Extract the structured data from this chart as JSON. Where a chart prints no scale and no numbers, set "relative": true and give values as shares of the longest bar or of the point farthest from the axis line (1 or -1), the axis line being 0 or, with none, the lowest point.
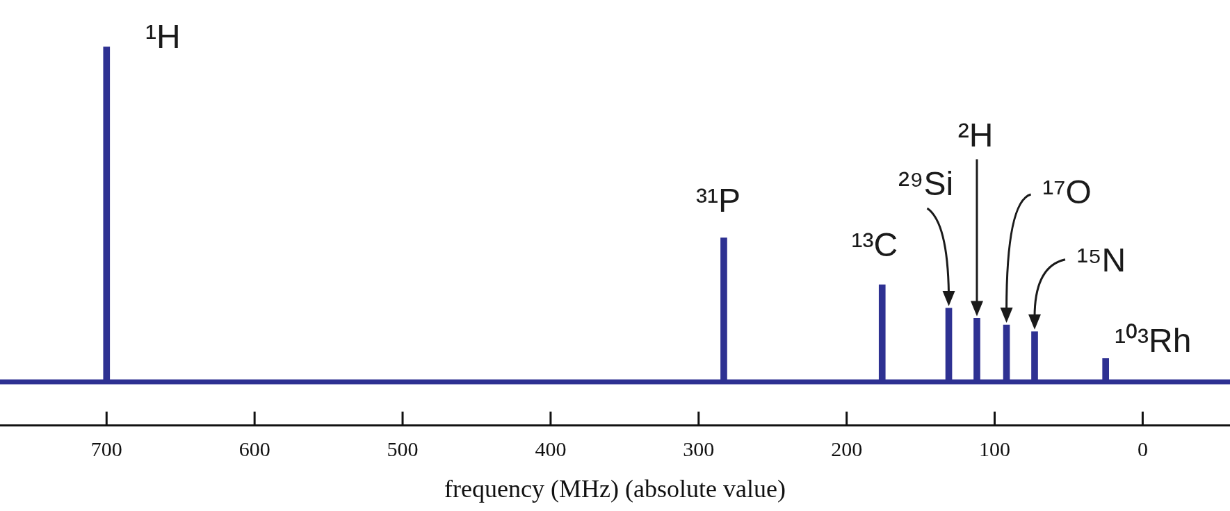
{
  "chart_data": {
    "type": "bar",
    "relative": true,
    "x": [
      700,
      283,
      176,
      131,
      112,
      92,
      73,
      25
    ],
    "values": [
      1,
      0.43,
      0.29,
      0.22,
      0.19,
      0.17,
      0.15,
      0.07
    ],
    "color": "#2e3192",
    "xlim": [
      772,
      -59
    ],
    "xticks": [
      700,
      600,
      500,
      400,
      300,
      200,
      100,
      0
    ],
    "xlabel": "frequency (MHz) (absolute value)",
    "annotations": [
      "¹H",
      "³¹P",
      "¹³C",
      "²⁹Si",
      "²H",
      "¹⁷O",
      "¹⁵N",
      "¹⁰³Rh"
    ],
    "grid": false,
    "legend": false
  }
}
